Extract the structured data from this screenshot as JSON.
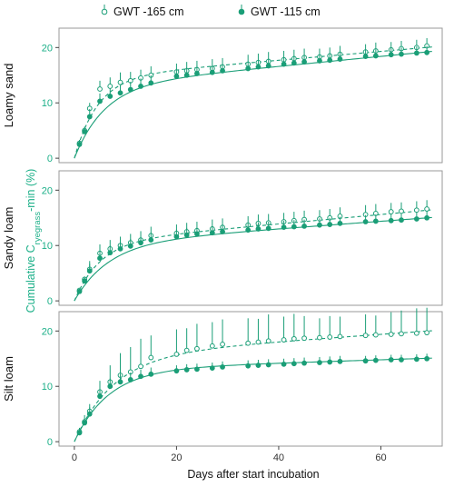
{
  "chart_data": {
    "type": "scatter",
    "colors": {
      "accent": "#1a9e77",
      "label": "#1db089",
      "frame": "#9a9a9a"
    },
    "xlabel": "Days after start incubation",
    "ylabel": {
      "prefix": "Cumulative C",
      "subscript": "ryegrass",
      "suffix": "-min (%)"
    },
    "xlim": [
      -3,
      72
    ],
    "ylim": [
      -0.8,
      23.5
    ],
    "x_ticks": [
      0,
      20,
      40,
      60
    ],
    "y_ticks": [
      0,
      10,
      20
    ],
    "legend": {
      "placement": "top",
      "entries": [
        {
          "series": "s165",
          "label": "GWT -165 cm",
          "marker": "open-circle",
          "line": "dashed"
        },
        {
          "series": "s115",
          "label": "GWT -115 cm",
          "marker": "filled-circle",
          "line": "solid"
        }
      ]
    },
    "days": [
      1,
      2,
      3,
      5,
      7,
      9,
      11,
      13,
      15,
      20,
      22,
      24,
      27,
      29,
      34,
      36,
      38,
      41,
      43,
      45,
      48,
      50,
      52,
      57,
      59,
      62,
      64,
      67,
      69
    ],
    "panels": [
      {
        "label": "Loamy sand",
        "series": [
          {
            "key": "s165",
            "values": [
              2.7,
              5.0,
              9.0,
              12.5,
              13.0,
              13.7,
              14.0,
              14.5,
              15.0,
              15.6,
              15.8,
              16.0,
              16.2,
              16.5,
              17.0,
              17.3,
              17.5,
              17.8,
              18.0,
              18.2,
              18.3,
              18.5,
              18.8,
              19.2,
              19.4,
              19.6,
              19.8,
              20.0,
              20.3
            ],
            "err_up": [
              0.3,
              0.4,
              1.0,
              1.5,
              1.6,
              1.8,
              1.6,
              1.5,
              1.6,
              1.5,
              1.6,
              1.6,
              1.7,
              1.6,
              1.7,
              1.6,
              1.7,
              1.6,
              1.6,
              1.6,
              1.5,
              1.5,
              1.5,
              1.4,
              1.5,
              1.4,
              1.4,
              1.4,
              1.4
            ],
            "fit": {
              "a": 14.5,
              "k": 0.22,
              "b": 0.08,
              "style": "dashed"
            }
          },
          {
            "key": "s115",
            "values": [
              2.5,
              4.8,
              7.5,
              10.3,
              11.2,
              11.8,
              12.4,
              13.0,
              13.6,
              14.8,
              15.0,
              15.3,
              15.5,
              15.8,
              16.2,
              16.5,
              16.7,
              17.0,
              17.2,
              17.4,
              17.6,
              17.7,
              17.9,
              18.4,
              18.5,
              18.7,
              18.8,
              19.0,
              19.1
            ],
            "err_up": [
              0.8,
              0.9,
              1.4,
              1.4,
              1.4,
              1.4,
              1.4,
              1.4,
              1.4,
              1.4,
              1.4,
              1.4,
              1.3,
              1.3,
              1.3,
              1.3,
              1.3,
              1.3,
              1.3,
              1.2,
              1.2,
              1.2,
              1.2,
              1.2,
              1.2,
              1.2,
              1.2,
              1.2,
              1.2
            ],
            "fit": {
              "a": 13.0,
              "k": 0.17,
              "b": 0.09,
              "style": "solid"
            }
          }
        ]
      },
      {
        "label": "Sandy loam",
        "series": [
          {
            "key": "s165",
            "values": [
              1.9,
              3.9,
              5.7,
              8.6,
              9.4,
              10.0,
              10.5,
              11.0,
              11.8,
              12.2,
              12.5,
              12.7,
              13.0,
              13.3,
              13.7,
              14.0,
              14.1,
              14.3,
              14.5,
              14.7,
              14.8,
              15.0,
              15.3,
              15.6,
              15.8,
              16.1,
              16.2,
              16.4,
              16.6
            ],
            "err_up": [
              0.4,
              0.5,
              1.5,
              1.6,
              1.6,
              1.6,
              1.6,
              1.6,
              1.6,
              1.6,
              1.6,
              1.6,
              1.7,
              1.6,
              1.6,
              1.6,
              1.6,
              1.6,
              1.6,
              1.6,
              1.6,
              1.6,
              1.6,
              1.7,
              1.7,
              1.6,
              1.6,
              1.6,
              1.6
            ],
            "fit": {
              "a": 10.5,
              "k": 0.2,
              "b": 0.085,
              "style": "dashed"
            }
          },
          {
            "key": "s115",
            "values": [
              1.7,
              3.6,
              5.4,
              7.7,
              8.7,
              9.4,
              9.9,
              10.5,
              11.0,
              11.6,
              11.9,
              12.1,
              12.3,
              12.5,
              12.8,
              13.0,
              13.1,
              13.3,
              13.4,
              13.5,
              13.7,
              13.8,
              14.0,
              14.3,
              14.4,
              14.5,
              14.6,
              14.8,
              15.0
            ],
            "err_up": [
              0.5,
              0.6,
              1.3,
              1.4,
              1.3,
              1.3,
              1.3,
              1.3,
              1.3,
              1.3,
              1.3,
              1.2,
              1.2,
              1.2,
              1.2,
              1.2,
              1.2,
              1.2,
              1.2,
              1.2,
              1.2,
              1.2,
              1.2,
              1.2,
              1.2,
              1.2,
              1.2,
              1.2,
              1.2
            ],
            "fit": {
              "a": 10.3,
              "k": 0.15,
              "b": 0.068,
              "style": "solid"
            }
          }
        ]
      },
      {
        "label": "Silt loam",
        "series": [
          {
            "key": "s165",
            "values": [
              1.8,
              3.6,
              5.5,
              9.0,
              10.8,
              12.0,
              12.6,
              13.6,
              15.2,
              15.8,
              16.5,
              16.8,
              17.3,
              17.6,
              17.8,
              18.0,
              18.2,
              18.4,
              18.6,
              18.7,
              18.8,
              18.9,
              19.0,
              19.2,
              19.3,
              19.4,
              19.5,
              19.6,
              19.7
            ],
            "err_up": [
              0.7,
              1.2,
              1.3,
              2.0,
              3.0,
              4.0,
              4.5,
              5.0,
              4.0,
              4.5,
              4.0,
              4.5,
              4.3,
              4.5,
              4.5,
              4.2,
              4.8,
              4.2,
              4.5,
              4.0,
              3.5,
              3.8,
              3.6,
              3.8,
              3.5,
              4.0,
              4.2,
              4.5,
              4.5
            ],
            "fit": {
              "a": 15.5,
              "k": 0.13,
              "b": 0.065,
              "style": "dashed"
            }
          },
          {
            "key": "s115",
            "values": [
              1.6,
              3.4,
              5.0,
              8.2,
              10.0,
              10.8,
              11.2,
              11.8,
              12.2,
              12.8,
              13.0,
              13.1,
              13.3,
              13.5,
              13.7,
              13.8,
              13.9,
              14.0,
              14.1,
              14.2,
              14.3,
              14.4,
              14.5,
              14.6,
              14.7,
              14.8,
              14.8,
              14.9,
              15.0
            ],
            "err_up": [
              0.6,
              0.8,
              1.2,
              1.5,
              1.4,
              1.5,
              1.3,
              1.2,
              1.2,
              1.0,
              1.0,
              1.0,
              1.0,
              1.0,
              1.0,
              1.0,
              1.0,
              1.0,
              1.0,
              1.0,
              1.0,
              1.0,
              1.0,
              0.9,
              0.9,
              0.9,
              0.9,
              0.9,
              0.9
            ],
            "fit": {
              "a": 13.0,
              "k": 0.15,
              "b": 0.03,
              "style": "solid"
            }
          }
        ]
      }
    ]
  }
}
